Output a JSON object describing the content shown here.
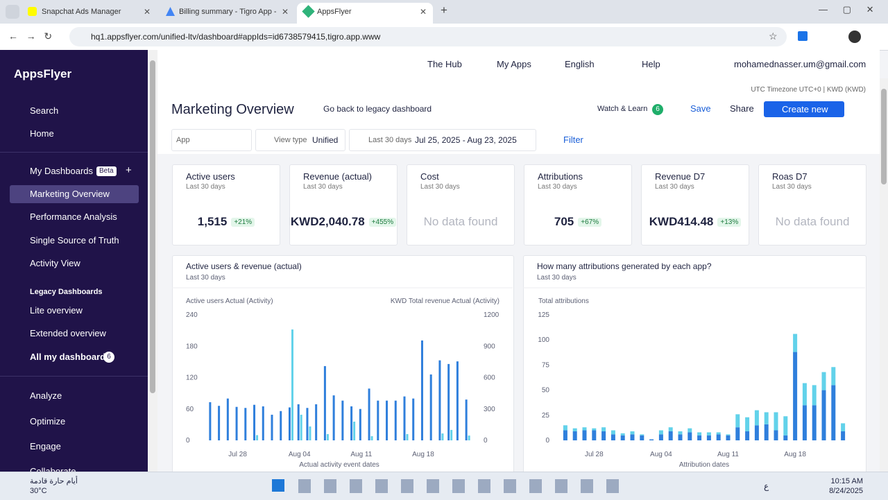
{
  "browser": {
    "tabs": [
      "Snapchat Ads Manager",
      "Billing summary - Tigro App - G",
      "AppsFlyer"
    ],
    "url": "hq1.appsflyer.com/unified-ltv/dashboard#appIds=id6738579415,tigro.app.www"
  },
  "sidebar": {
    "logo": "AppsFlyer",
    "top": [
      "Search",
      "Home"
    ],
    "my_dashboards": "My Dashboards",
    "beta": "Beta",
    "dashboards": [
      "Marketing Overview",
      "Performance Analysis",
      "Single Source of Truth",
      "Activity View"
    ],
    "legacy_title": "Legacy Dashboards",
    "legacy": [
      "Lite overview",
      "Extended overview"
    ],
    "all": "All my dashboards",
    "all_count": "6",
    "bottom": [
      "Analyze",
      "Optimize",
      "Engage",
      "Collaborate"
    ]
  },
  "topbar": {
    "items": [
      "The Hub",
      "My Apps",
      "English",
      "Help"
    ],
    "email": "mohamednasser.um@gmail.com",
    "timezone": "UTC Timezone UTC+0 | KWD (KWD)"
  },
  "header": {
    "title": "Marketing Overview",
    "legacy_link": "Go back to legacy dashboard",
    "watch": "Watch & Learn",
    "watch_count": "6",
    "save": "Save",
    "share": "Share",
    "create": "Create new"
  },
  "filters": {
    "app": "App",
    "view_type_label": "View type",
    "view_type": "Unified",
    "date_label": "Last 30 days",
    "date_range": "Jul 25, 2025 - Aug 23, 2025",
    "filter": "Filter"
  },
  "kpis": [
    {
      "title": "Active users",
      "period": "Last 30 days",
      "value": "1,515",
      "change": "+21%"
    },
    {
      "title": "Revenue (actual)",
      "period": "Last 30 days",
      "value": "KWD2,040.78",
      "change": "+455%"
    },
    {
      "title": "Cost",
      "period": "Last 30 days",
      "value": "No data found"
    },
    {
      "title": "Attributions",
      "period": "Last 30 days",
      "value": "705",
      "change": "+67%"
    },
    {
      "title": "Revenue D7",
      "period": "Last 30 days",
      "value": "KWD414.48",
      "change": "+13%"
    },
    {
      "title": "Roas D7",
      "period": "Last 30 days",
      "value": "No data found"
    }
  ],
  "chart_data": [
    {
      "type": "bar",
      "title": "Active users & revenue (actual)",
      "subtitle": "Last 30 days",
      "y_label": "Active users Actual (Activity)",
      "y2_label": "KWD Total revenue Actual (Activity)",
      "x_label": "Actual activity event dates",
      "categories": [
        null,
        null,
        null,
        "Jul 28",
        null,
        null,
        null,
        null,
        null,
        null,
        "Aug 04",
        null,
        null,
        null,
        null,
        null,
        null,
        "Aug 11",
        null,
        null,
        null,
        null,
        null,
        null,
        "Aug 18",
        null,
        null,
        null,
        null,
        null
      ],
      "series": [
        {
          "color": "#2f7fdc",
          "values": [
            73,
            66,
            80,
            64,
            62,
            68,
            65,
            49,
            56,
            63,
            69,
            62,
            69,
            142,
            86,
            76,
            65,
            60,
            99,
            76,
            76,
            76,
            84,
            80,
            191,
            126,
            153,
            146,
            151,
            78
          ]
        },
        {
          "color": "#62d2ea",
          "axis": "y2",
          "values": [
            0,
            0,
            0,
            0,
            0,
            50,
            0,
            0,
            0,
            1060,
            245,
            133,
            0,
            60,
            0,
            0,
            179,
            0,
            40,
            0,
            0,
            0,
            60,
            0,
            0,
            0,
            66,
            100,
            0,
            46
          ]
        }
      ],
      "ylim": [
        0,
        240
      ],
      "yticks": [
        0,
        60,
        120,
        180,
        240
      ],
      "y2lim": [
        0,
        1200
      ],
      "y2ticks": [
        0,
        300,
        600,
        900,
        1200
      ]
    },
    {
      "type": "stacked_bar",
      "title": "How many attributions generated by each app?",
      "subtitle": "Last 30 days",
      "y_label": "Total attributions",
      "x_label": "Attribution dates",
      "categories": [
        null,
        null,
        null,
        "Jul 28",
        null,
        null,
        null,
        null,
        null,
        null,
        "Aug 04",
        null,
        null,
        null,
        null,
        null,
        null,
        "Aug 11",
        null,
        null,
        null,
        null,
        null,
        null,
        "Aug 18",
        null,
        null,
        null,
        null,
        null
      ],
      "series": [
        {
          "color": "#2f7fdc",
          "values": [
            10,
            9,
            10,
            10,
            9,
            6,
            5,
            6,
            5,
            1,
            6,
            9,
            6,
            8,
            5,
            5,
            6,
            5,
            13,
            9,
            15,
            16,
            10,
            5,
            88,
            35,
            35,
            50,
            55,
            9
          ]
        },
        {
          "color": "#62d2ea",
          "values": [
            5,
            3,
            3,
            2,
            4,
            4,
            2,
            3,
            1,
            0,
            4,
            4,
            3,
            4,
            3,
            3,
            2,
            1,
            13,
            14,
            15,
            12,
            18,
            19,
            18,
            22,
            20,
            18,
            18,
            8
          ]
        }
      ],
      "ylim": [
        0,
        125
      ],
      "yticks": [
        0,
        25,
        50,
        75,
        100,
        125
      ]
    }
  ],
  "taskbar": {
    "weather_text": "أيام حارة قادمة",
    "temp": "30°C",
    "time": "10:15 AM",
    "date": "8/24/2025",
    "lang": "ع"
  }
}
